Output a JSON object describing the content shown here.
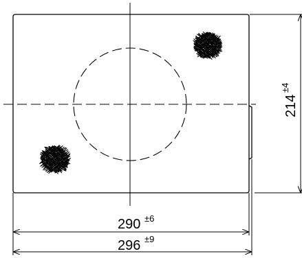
{
  "dimensions": {
    "inner_width": {
      "value": "290",
      "tolerance": "±6"
    },
    "outer_width": {
      "value": "296",
      "tolerance": "±9"
    },
    "height": {
      "value": "214",
      "tolerance": "±4"
    }
  }
}
